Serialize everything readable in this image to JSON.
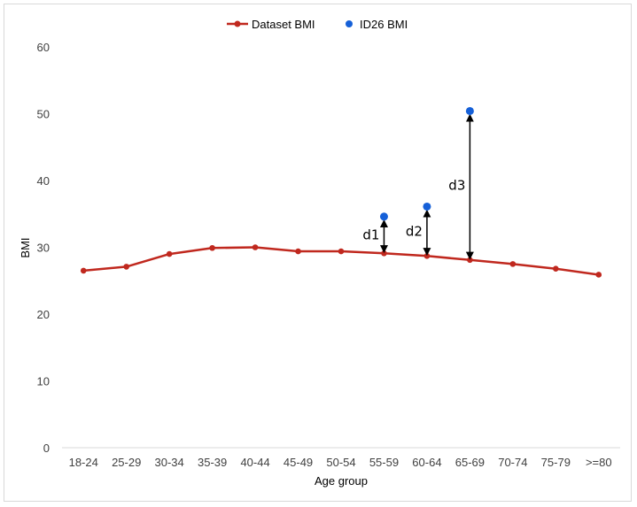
{
  "chart_data": {
    "type": "line",
    "xlabel": "Age group",
    "ylabel": "BMI",
    "ylim": [
      0,
      60
    ],
    "yticks": [
      0,
      10,
      20,
      30,
      40,
      50,
      60
    ],
    "grid": false,
    "legend_position": "top",
    "categories": [
      "18-24",
      "25-29",
      "30-34",
      "35-39",
      "40-44",
      "45-49",
      "50-54",
      "55-59",
      "60-64",
      "65-69",
      "70-74",
      "75-79",
      ">=80"
    ],
    "series": [
      {
        "name": "Dataset BMI",
        "kind": "line",
        "color": "#c0281e",
        "values": [
          26.5,
          27.1,
          29.0,
          29.9,
          30.0,
          29.4,
          29.4,
          29.1,
          28.7,
          28.1,
          27.5,
          26.8,
          25.9
        ]
      },
      {
        "name": "ID26 BMI",
        "kind": "scatter",
        "color": "#1560d8",
        "points": [
          {
            "category": "55-59",
            "value": 34.6
          },
          {
            "category": "60-64",
            "value": 36.1
          },
          {
            "category": "65-69",
            "value": 50.4
          }
        ]
      }
    ],
    "annotations": [
      {
        "label": "d1",
        "category": "55-59",
        "from": 29.1,
        "to": 34.6
      },
      {
        "label": "d2",
        "category": "60-64",
        "from": 28.7,
        "to": 36.1
      },
      {
        "label": "d3",
        "category": "65-69",
        "from": 28.1,
        "to": 50.4
      }
    ]
  }
}
